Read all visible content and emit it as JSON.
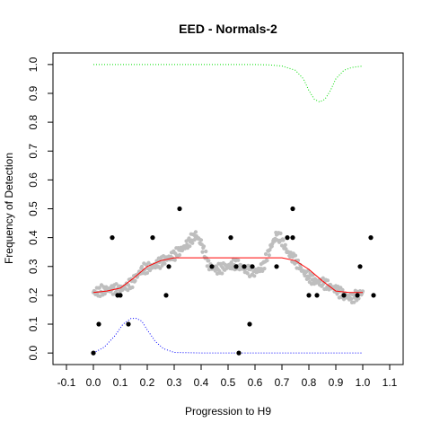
{
  "chart_data": {
    "type": "scatter",
    "title": "EED - Normals-2",
    "xlabel": "Progression to H9",
    "ylabel": "Frequency of Detection",
    "xlim": [
      -0.15,
      1.15
    ],
    "ylim": [
      -0.04,
      1.04
    ],
    "xticks": [
      -0.1,
      0.0,
      0.1,
      0.2,
      0.3,
      0.4,
      0.5,
      0.6,
      0.7,
      0.8,
      0.9,
      1.0,
      1.1
    ],
    "xtick_labels": [
      "-0.1",
      "0.0",
      "0.1",
      "0.2",
      "0.3",
      "0.4",
      "0.5",
      "0.6",
      "0.7",
      "0.8",
      "0.9",
      "1.0",
      "1.1"
    ],
    "yticks": [
      0.0,
      0.1,
      0.2,
      0.3,
      0.4,
      0.5,
      0.6,
      0.7,
      0.8,
      0.9,
      1.0
    ],
    "ytick_labels": [
      "0.0",
      "0.1",
      "0.2",
      "0.3",
      "0.4",
      "0.5",
      "0.6",
      "0.7",
      "0.8",
      "0.9",
      "1.0"
    ],
    "grid": false,
    "colors": {
      "points": "#000000",
      "smooth_points": "#bebebe",
      "fit_line": "#ff0000",
      "upper_curve": "#00dd00",
      "lower_curve": "#0000ff"
    },
    "series": [
      {
        "type": "scatter",
        "points": [
          [
            0.0,
            0.0
          ],
          [
            0.02,
            0.1
          ],
          [
            0.07,
            0.4
          ],
          [
            0.09,
            0.2
          ],
          [
            0.1,
            0.2
          ],
          [
            0.13,
            0.1
          ],
          [
            0.22,
            0.4
          ],
          [
            0.27,
            0.2
          ],
          [
            0.28,
            0.3
          ],
          [
            0.32,
            0.5
          ],
          [
            0.44,
            0.3
          ],
          [
            0.51,
            0.4
          ],
          [
            0.53,
            0.3
          ],
          [
            0.54,
            0.0
          ],
          [
            0.56,
            0.3
          ],
          [
            0.58,
            0.1
          ],
          [
            0.59,
            0.3
          ],
          [
            0.68,
            0.3
          ],
          [
            0.72,
            0.4
          ],
          [
            0.74,
            0.5
          ],
          [
            0.74,
            0.4
          ],
          [
            0.8,
            0.2
          ],
          [
            0.83,
            0.2
          ],
          [
            0.93,
            0.2
          ],
          [
            0.98,
            0.2
          ],
          [
            0.99,
            0.3
          ],
          [
            1.03,
            0.4
          ],
          [
            1.04,
            0.2
          ]
        ]
      },
      {
        "type": "scatter-dense",
        "x": [
          0.0,
          0.05,
          0.1,
          0.14,
          0.18,
          0.22,
          0.26,
          0.3,
          0.33,
          0.36,
          0.38,
          0.4,
          0.43,
          0.46,
          0.5,
          0.53,
          0.56,
          0.6,
          0.63,
          0.66,
          0.68,
          0.7,
          0.72,
          0.75,
          0.78,
          0.82,
          0.86,
          0.9,
          0.93,
          0.96,
          1.0
        ],
        "y": [
          0.21,
          0.22,
          0.22,
          0.24,
          0.29,
          0.3,
          0.32,
          0.34,
          0.36,
          0.39,
          0.41,
          0.38,
          0.3,
          0.29,
          0.3,
          0.31,
          0.29,
          0.28,
          0.3,
          0.37,
          0.41,
          0.39,
          0.35,
          0.32,
          0.28,
          0.25,
          0.24,
          0.22,
          0.2,
          0.19,
          0.21
        ]
      },
      {
        "type": "line",
        "x": [
          0.0,
          0.05,
          0.1,
          0.15,
          0.2,
          0.25,
          0.3,
          0.4,
          0.5,
          0.6,
          0.7,
          0.75,
          0.8,
          0.85,
          0.9,
          0.95,
          1.0
        ],
        "y": [
          0.21,
          0.215,
          0.225,
          0.26,
          0.3,
          0.32,
          0.33,
          0.33,
          0.33,
          0.33,
          0.33,
          0.32,
          0.29,
          0.25,
          0.215,
          0.21,
          0.21
        ]
      },
      {
        "type": "line-dotted",
        "x": [
          0.0,
          0.1,
          0.2,
          0.3,
          0.4,
          0.5,
          0.6,
          0.65,
          0.7,
          0.75,
          0.78,
          0.8,
          0.82,
          0.84,
          0.86,
          0.88,
          0.9,
          0.93,
          0.96,
          1.0
        ],
        "y": [
          1.0,
          1.0,
          1.0,
          1.0,
          1.0,
          1.0,
          1.0,
          0.999,
          0.995,
          0.98,
          0.95,
          0.91,
          0.88,
          0.87,
          0.88,
          0.91,
          0.95,
          0.98,
          0.99,
          0.995
        ]
      },
      {
        "type": "line-dotted",
        "x": [
          0.0,
          0.04,
          0.08,
          0.11,
          0.14,
          0.16,
          0.18,
          0.2,
          0.23,
          0.26,
          0.3,
          0.4,
          0.5,
          0.6,
          0.7,
          0.8,
          0.9,
          1.0
        ],
        "y": [
          0.0,
          0.02,
          0.06,
          0.1,
          0.12,
          0.12,
          0.11,
          0.08,
          0.04,
          0.015,
          0.002,
          0.0,
          0.0,
          0.0,
          0.0,
          0.0,
          0.0,
          0.0
        ]
      }
    ]
  }
}
